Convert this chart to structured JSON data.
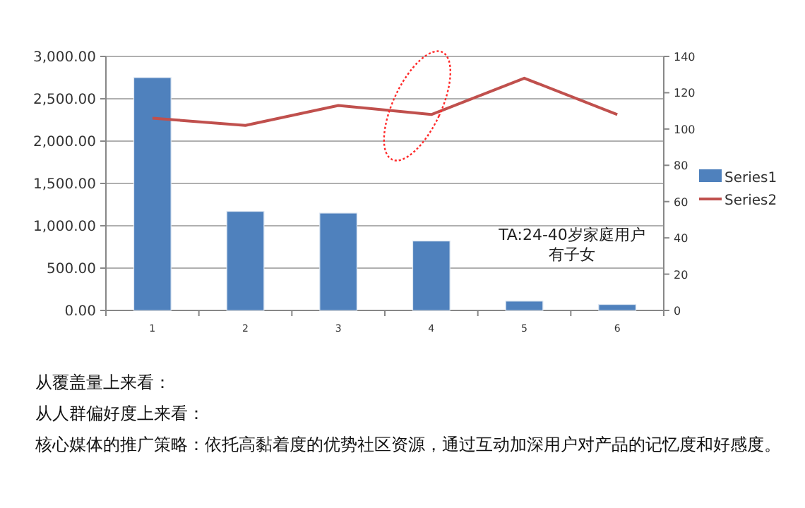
{
  "chart_data": {
    "type": "bar",
    "categories": [
      "1",
      "2",
      "3",
      "4",
      "5",
      "6"
    ],
    "series": [
      {
        "name": "Series1",
        "color": "#4f81bd",
        "values": [
          2750,
          1170,
          1150,
          820,
          110,
          70
        ]
      },
      {
        "name": "Series2",
        "type": "line",
        "axis": "y2",
        "color": "#c0504d",
        "values": [
          106,
          102,
          113,
          108,
          128,
          108
        ]
      }
    ],
    "ylim": [
      0,
      3000
    ],
    "yticks": [
      {
        "value": 0,
        "label": "0.00"
      },
      {
        "value": 500,
        "label": "500.00"
      },
      {
        "value": 1000,
        "label": "1,000.00"
      },
      {
        "value": 1500,
        "label": "1,500.00"
      },
      {
        "value": 2000,
        "label": "2,000.00"
      },
      {
        "value": 2500,
        "label": "2,500.00"
      },
      {
        "value": 3000,
        "label": "3,000.00"
      }
    ],
    "y2lim": [
      0,
      140
    ],
    "y2ticks": [
      0,
      20,
      40,
      60,
      80,
      100,
      120,
      140
    ],
    "grid": "y",
    "legend": "right",
    "annotations": [
      {
        "text": "TA:24-40岁家庭用户"
      },
      {
        "text": "有子女"
      },
      {
        "text": "从覆盖量上来看："
      },
      {
        "text": "从人群偏好度上来看："
      },
      {
        "text": "核心媒体的推广策略：依托高黏着度的优势社区资源，通过互动加深用户对产品的记忆度和好感度。"
      }
    ]
  }
}
